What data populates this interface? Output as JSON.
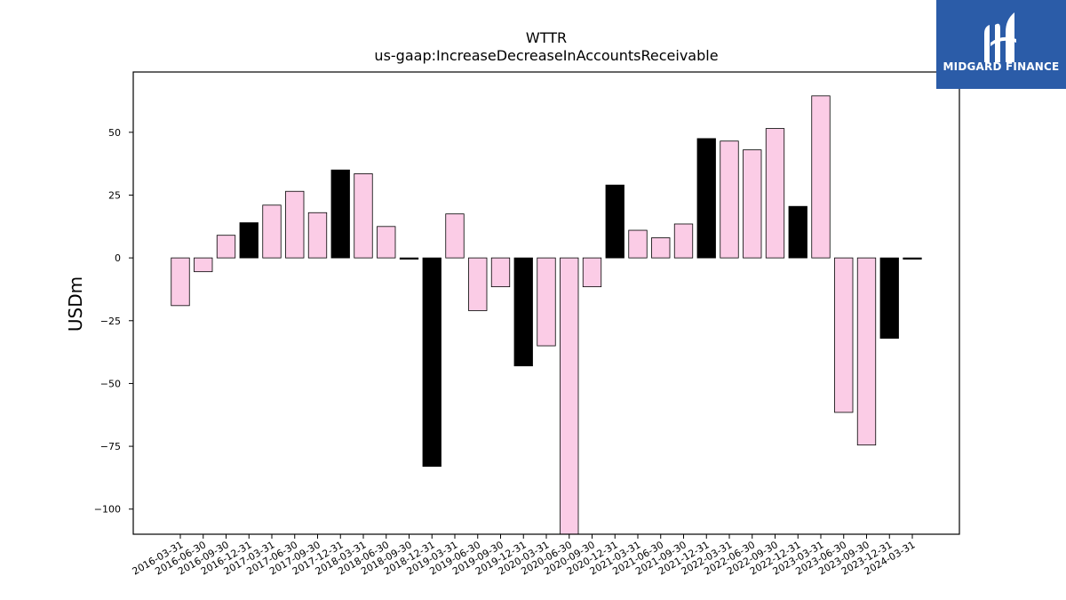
{
  "chart_data": {
    "type": "bar",
    "title": "WTTR",
    "subtitle": "us-gaap:IncreaseDecreaseInAccountsReceivable",
    "xlabel": "",
    "ylabel": "USDm",
    "ylim": [
      -110,
      74
    ],
    "yticks": [
      -100,
      -75,
      -50,
      -25,
      0,
      25,
      50
    ],
    "grid": false,
    "categories": [
      "2016-03-31",
      "2016-06-30",
      "2016-09-30",
      "2016-12-31",
      "2017-03-31",
      "2017-06-30",
      "2017-09-30",
      "2017-12-31",
      "2018-03-31",
      "2018-06-30",
      "2018-09-30",
      "2018-12-31",
      "2019-03-31",
      "2019-06-30",
      "2019-09-30",
      "2019-12-31",
      "2020-03-31",
      "2020-06-30",
      "2020-09-30",
      "2020-12-31",
      "2021-03-31",
      "2021-06-30",
      "2021-09-30",
      "2021-12-31",
      "2022-03-31",
      "2022-06-30",
      "2022-09-30",
      "2022-12-31",
      "2023-03-31",
      "2023-06-30",
      "2023-09-30",
      "2023-12-31",
      "2024-03-31"
    ],
    "values": [
      -19,
      -5.5,
      9,
      14,
      21,
      26.5,
      18,
      35,
      33.5,
      12.5,
      -0.5,
      -83,
      17.5,
      -21,
      -11.5,
      -43,
      -35,
      -110,
      -11.5,
      29,
      11,
      8,
      13.5,
      47.5,
      46.5,
      43,
      51.5,
      20.5,
      64.5,
      -61.5,
      -74.5,
      -32,
      -0.5
    ],
    "colors": [
      "#fbcce6",
      "#fbcce6",
      "#fbcce6",
      "#000000",
      "#fbcce6",
      "#fbcce6",
      "#fbcce6",
      "#000000",
      "#fbcce6",
      "#fbcce6",
      "#000000",
      "#000000",
      "#fbcce6",
      "#fbcce6",
      "#fbcce6",
      "#000000",
      "#fbcce6",
      "#fbcce6",
      "#fbcce6",
      "#000000",
      "#fbcce6",
      "#fbcce6",
      "#fbcce6",
      "#000000",
      "#fbcce6",
      "#fbcce6",
      "#fbcce6",
      "#000000",
      "#fbcce6",
      "#fbcce6",
      "#fbcce6",
      "#000000",
      "#000000"
    ]
  },
  "logo": {
    "text": "MIDGARD FINANCE",
    "background": "#2b5ca8"
  }
}
